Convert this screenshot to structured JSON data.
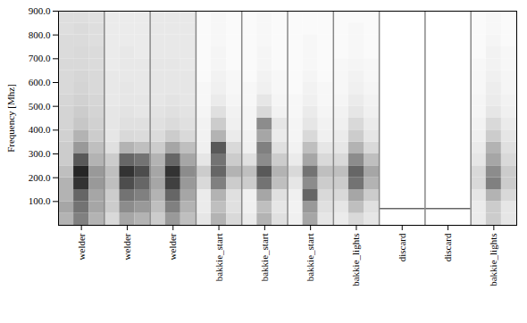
{
  "chart_data": {
    "type": "heatmap",
    "y_label": "Frequency [Mhz]",
    "ylim": [
      0,
      900
    ],
    "yticks": [
      {
        "value": 100,
        "label": "100.0"
      },
      {
        "value": 200,
        "label": "200.0"
      },
      {
        "value": 300,
        "label": "300.0"
      },
      {
        "value": 400,
        "label": "400.0"
      },
      {
        "value": 500,
        "label": "500.0"
      },
      {
        "value": 600,
        "label": "600.0"
      },
      {
        "value": 700,
        "label": "700.0"
      },
      {
        "value": 800,
        "label": "800.0"
      },
      {
        "value": 900,
        "label": "900.0"
      }
    ],
    "zlim": [
      0,
      1
    ],
    "frequency_bins": [
      0,
      50,
      100,
      150,
      200,
      250,
      300,
      350,
      400,
      450,
      500,
      550,
      600,
      650,
      700,
      750,
      800,
      850,
      900
    ],
    "categories": [
      "welder",
      "welder",
      "welder",
      "bakkie_start",
      "bakkie_start",
      "bakkie_start",
      "bakkie_lights",
      "discard",
      "discard",
      "bakkie_lights"
    ],
    "hlines": [
      null,
      null,
      null,
      null,
      null,
      null,
      null,
      70,
      70,
      null
    ],
    "cells": [
      [
        [
          0.3,
          0.35,
          0.3,
          0.3,
          0.25,
          0.2,
          0.2,
          0.18,
          0.17,
          0.17,
          0.16,
          0.15,
          0.15,
          0.15,
          0.14,
          0.14,
          0.13,
          0.13
        ],
        [
          0.5,
          0.55,
          0.6,
          0.8,
          0.85,
          0.65,
          0.4,
          0.3,
          0.22,
          0.2,
          0.18,
          0.17,
          0.16,
          0.15,
          0.15,
          0.14,
          0.14,
          0.13
        ],
        [
          0.3,
          0.35,
          0.35,
          0.4,
          0.4,
          0.3,
          0.25,
          0.2,
          0.18,
          0.17,
          0.16,
          0.15,
          0.15,
          0.14,
          0.14,
          0.13,
          0.13,
          0.12
        ]
      ],
      [
        [
          0.15,
          0.2,
          0.2,
          0.25,
          0.25,
          0.2,
          0.12,
          0.1,
          0.1,
          0.1,
          0.09,
          0.09,
          0.09,
          0.08,
          0.08,
          0.08,
          0.08,
          0.08
        ],
        [
          0.35,
          0.45,
          0.55,
          0.7,
          0.8,
          0.6,
          0.3,
          0.15,
          0.12,
          0.11,
          0.1,
          0.1,
          0.09,
          0.09,
          0.09,
          0.08,
          0.08,
          0.08
        ],
        [
          0.3,
          0.4,
          0.5,
          0.6,
          0.7,
          0.55,
          0.25,
          0.14,
          0.12,
          0.1,
          0.1,
          0.09,
          0.09,
          0.09,
          0.08,
          0.08,
          0.08,
          0.08
        ]
      ],
      [
        [
          0.2,
          0.25,
          0.3,
          0.35,
          0.35,
          0.3,
          0.2,
          0.14,
          0.12,
          0.11,
          0.1,
          0.1,
          0.1,
          0.1,
          0.09,
          0.09,
          0.09,
          0.09
        ],
        [
          0.4,
          0.5,
          0.6,
          0.75,
          0.8,
          0.6,
          0.35,
          0.2,
          0.14,
          0.12,
          0.11,
          0.1,
          0.1,
          0.1,
          0.09,
          0.09,
          0.09,
          0.09
        ],
        [
          0.25,
          0.3,
          0.35,
          0.4,
          0.45,
          0.35,
          0.25,
          0.15,
          0.12,
          0.11,
          0.1,
          0.1,
          0.1,
          0.09,
          0.09,
          0.09,
          0.09,
          0.09
        ]
      ],
      [
        [
          0.1,
          0.08,
          0.08,
          0.15,
          0.2,
          0.1,
          0.06,
          0.05,
          0.05,
          0.04,
          0.03,
          0.03,
          0.02,
          0.02,
          0.02,
          0.02,
          0.02,
          0.02
        ],
        [
          0.3,
          0.25,
          0.3,
          0.5,
          0.6,
          0.55,
          0.65,
          0.3,
          0.2,
          0.12,
          0.08,
          0.06,
          0.05,
          0.04,
          0.04,
          0.03,
          0.03,
          0.03
        ],
        [
          0.15,
          0.12,
          0.12,
          0.2,
          0.3,
          0.2,
          0.15,
          0.08,
          0.06,
          0.05,
          0.04,
          0.03,
          0.03,
          0.02,
          0.02,
          0.02,
          0.02,
          0.02
        ]
      ],
      [
        [
          0.08,
          0.06,
          0.06,
          0.2,
          0.25,
          0.12,
          0.06,
          0.05,
          0.04,
          0.04,
          0.03,
          0.03,
          0.02,
          0.02,
          0.02,
          0.02,
          0.02,
          0.02
        ],
        [
          0.3,
          0.25,
          0.35,
          0.55,
          0.65,
          0.45,
          0.5,
          0.35,
          0.45,
          0.15,
          0.1,
          0.06,
          0.05,
          0.04,
          0.04,
          0.03,
          0.03,
          0.03
        ],
        [
          0.12,
          0.1,
          0.12,
          0.25,
          0.3,
          0.2,
          0.12,
          0.08,
          0.1,
          0.05,
          0.04,
          0.03,
          0.03,
          0.02,
          0.02,
          0.02,
          0.02,
          0.02
        ]
      ],
      [
        [
          0.06,
          0.05,
          0.06,
          0.1,
          0.15,
          0.08,
          0.05,
          0.04,
          0.04,
          0.03,
          0.03,
          0.02,
          0.02,
          0.02,
          0.02,
          0.02,
          0.02,
          0.02
        ],
        [
          0.35,
          0.4,
          0.6,
          0.45,
          0.55,
          0.35,
          0.25,
          0.15,
          0.1,
          0.08,
          0.06,
          0.05,
          0.04,
          0.03,
          0.03,
          0.03,
          0.02,
          0.02
        ],
        [
          0.1,
          0.12,
          0.15,
          0.2,
          0.25,
          0.15,
          0.1,
          0.06,
          0.05,
          0.04,
          0.03,
          0.03,
          0.02,
          0.02,
          0.02,
          0.02,
          0.02,
          0.02
        ]
      ],
      [
        [
          0.08,
          0.1,
          0.15,
          0.2,
          0.25,
          0.15,
          0.1,
          0.08,
          0.06,
          0.05,
          0.04,
          0.03,
          0.03,
          0.03,
          0.02,
          0.02,
          0.02,
          0.02
        ],
        [
          0.15,
          0.25,
          0.35,
          0.55,
          0.6,
          0.45,
          0.3,
          0.2,
          0.15,
          0.1,
          0.08,
          0.06,
          0.05,
          0.04,
          0.03,
          0.03,
          0.03,
          0.02
        ],
        [
          0.1,
          0.12,
          0.2,
          0.3,
          0.35,
          0.25,
          0.15,
          0.1,
          0.08,
          0.06,
          0.05,
          0.04,
          0.03,
          0.03,
          0.02,
          0.02,
          0.02,
          0.02
        ]
      ],
      [
        [
          0,
          0,
          0,
          0,
          0,
          0,
          0,
          0,
          0,
          0,
          0,
          0,
          0,
          0,
          0,
          0,
          0,
          0
        ],
        [
          0,
          0,
          0,
          0,
          0,
          0,
          0,
          0,
          0,
          0,
          0,
          0,
          0,
          0,
          0,
          0,
          0,
          0
        ],
        [
          0,
          0,
          0,
          0,
          0,
          0,
          0,
          0,
          0,
          0,
          0,
          0,
          0,
          0,
          0,
          0,
          0,
          0
        ]
      ],
      [
        [
          0,
          0,
          0,
          0,
          0,
          0,
          0,
          0,
          0,
          0,
          0,
          0,
          0,
          0,
          0,
          0,
          0,
          0
        ],
        [
          0,
          0,
          0,
          0,
          0,
          0,
          0,
          0,
          0,
          0,
          0,
          0,
          0,
          0,
          0,
          0,
          0,
          0
        ],
        [
          0,
          0,
          0,
          0,
          0,
          0,
          0,
          0,
          0,
          0,
          0,
          0,
          0,
          0,
          0,
          0,
          0,
          0
        ]
      ],
      [
        [
          0.08,
          0.08,
          0.1,
          0.15,
          0.15,
          0.1,
          0.08,
          0.06,
          0.05,
          0.04,
          0.04,
          0.03,
          0.03,
          0.03,
          0.02,
          0.02,
          0.02,
          0.02
        ],
        [
          0.2,
          0.2,
          0.3,
          0.5,
          0.45,
          0.35,
          0.3,
          0.2,
          0.15,
          0.1,
          0.08,
          0.07,
          0.06,
          0.05,
          0.05,
          0.04,
          0.03,
          0.03
        ],
        [
          0.1,
          0.1,
          0.15,
          0.2,
          0.2,
          0.15,
          0.12,
          0.1,
          0.08,
          0.06,
          0.05,
          0.04,
          0.04,
          0.03,
          0.03,
          0.02,
          0.02,
          0.02
        ]
      ]
    ]
  }
}
